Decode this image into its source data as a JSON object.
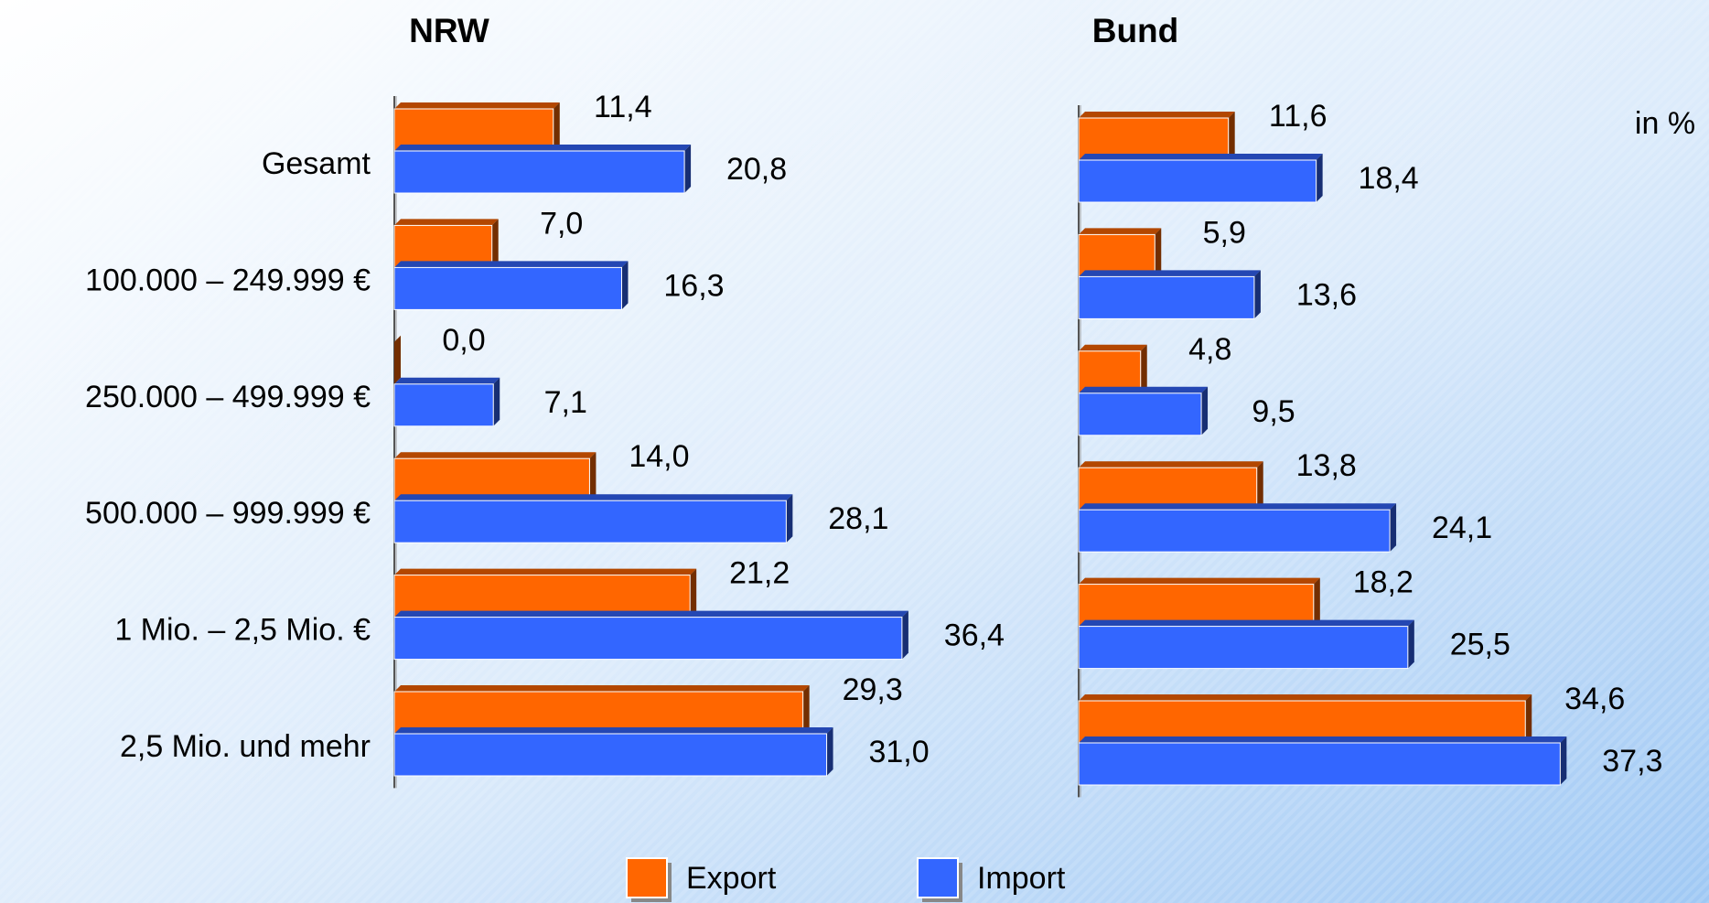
{
  "chart_data": [
    {
      "type": "bar",
      "orientation": "horizontal",
      "title": "NRW",
      "categories": [
        "Gesamt",
        "100.000 – 249.999 €",
        "250.000 – 499.999 €",
        "500.000 – 999.999 €",
        "1 Mio. – 2,5 Mio. €",
        "2,5 Mio. und mehr"
      ],
      "xlim": [
        0,
        45
      ],
      "series": [
        {
          "name": "Export",
          "color": "#ff6600",
          "values": [
            11.4,
            7.0,
            0.0,
            14.0,
            21.2,
            29.3
          ],
          "value_labels": [
            "11,4",
            "7,0",
            "0,0",
            "14,0",
            "21,2",
            "29,3"
          ]
        },
        {
          "name": "Import",
          "color": "#3366ff",
          "values": [
            20.8,
            16.3,
            7.1,
            28.1,
            36.4,
            31.0
          ],
          "value_labels": [
            "20,8",
            "16,3",
            "7,1",
            "28,1",
            "36,4",
            "31,0"
          ]
        }
      ]
    },
    {
      "type": "bar",
      "orientation": "horizontal",
      "title": "Bund",
      "annotation": "in %",
      "xlim": [
        0,
        45
      ],
      "series": [
        {
          "color": "#ff6600",
          "values": [
            11.6,
            5.9,
            4.8,
            13.8,
            18.2,
            34.6
          ],
          "value_labels": [
            "11,6",
            "5,9",
            "4,8",
            "13,8",
            "18,2",
            "34,6"
          ]
        },
        {
          "color": "#3366ff",
          "values": [
            18.4,
            13.6,
            9.5,
            24.1,
            25.5,
            37.3
          ],
          "value_labels": [
            "18,4",
            "13,6",
            "9,5",
            "24,1",
            "25,5",
            "37,3"
          ]
        }
      ]
    }
  ]
}
